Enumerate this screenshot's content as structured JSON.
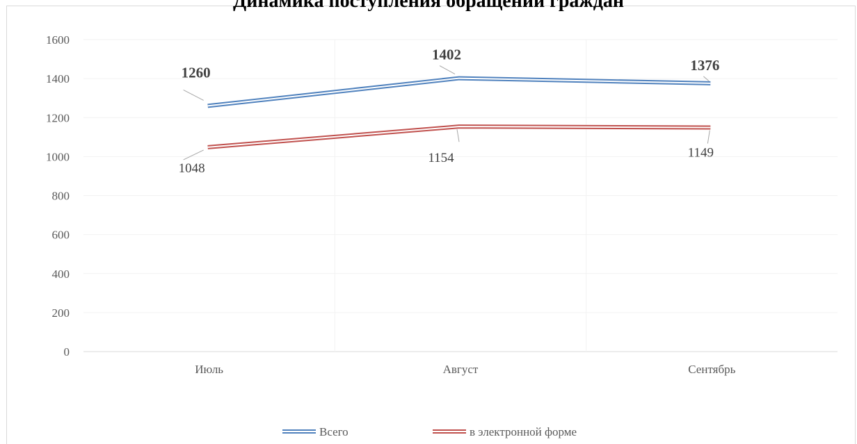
{
  "chart_data": {
    "type": "line",
    "title": "Динамика поступления обращений граждан",
    "categories": [
      "Июль",
      "Август",
      "Сентябрь"
    ],
    "series": [
      {
        "name": "Всего",
        "values": [
          1260,
          1402,
          1376
        ],
        "color": "#4f81bd",
        "label_bold": true
      },
      {
        "name": "в электронной форме",
        "values": [
          1048,
          1154,
          1149
        ],
        "color": "#c0504d",
        "label_bold": false
      }
    ],
    "ylim": [
      0,
      1600
    ],
    "yticks": [
      "0",
      "200",
      "400",
      "600",
      "800",
      "1000",
      "1200",
      "1400",
      "1600"
    ],
    "xlabel": "",
    "ylabel": "",
    "grid": true,
    "legend": "bottom"
  }
}
